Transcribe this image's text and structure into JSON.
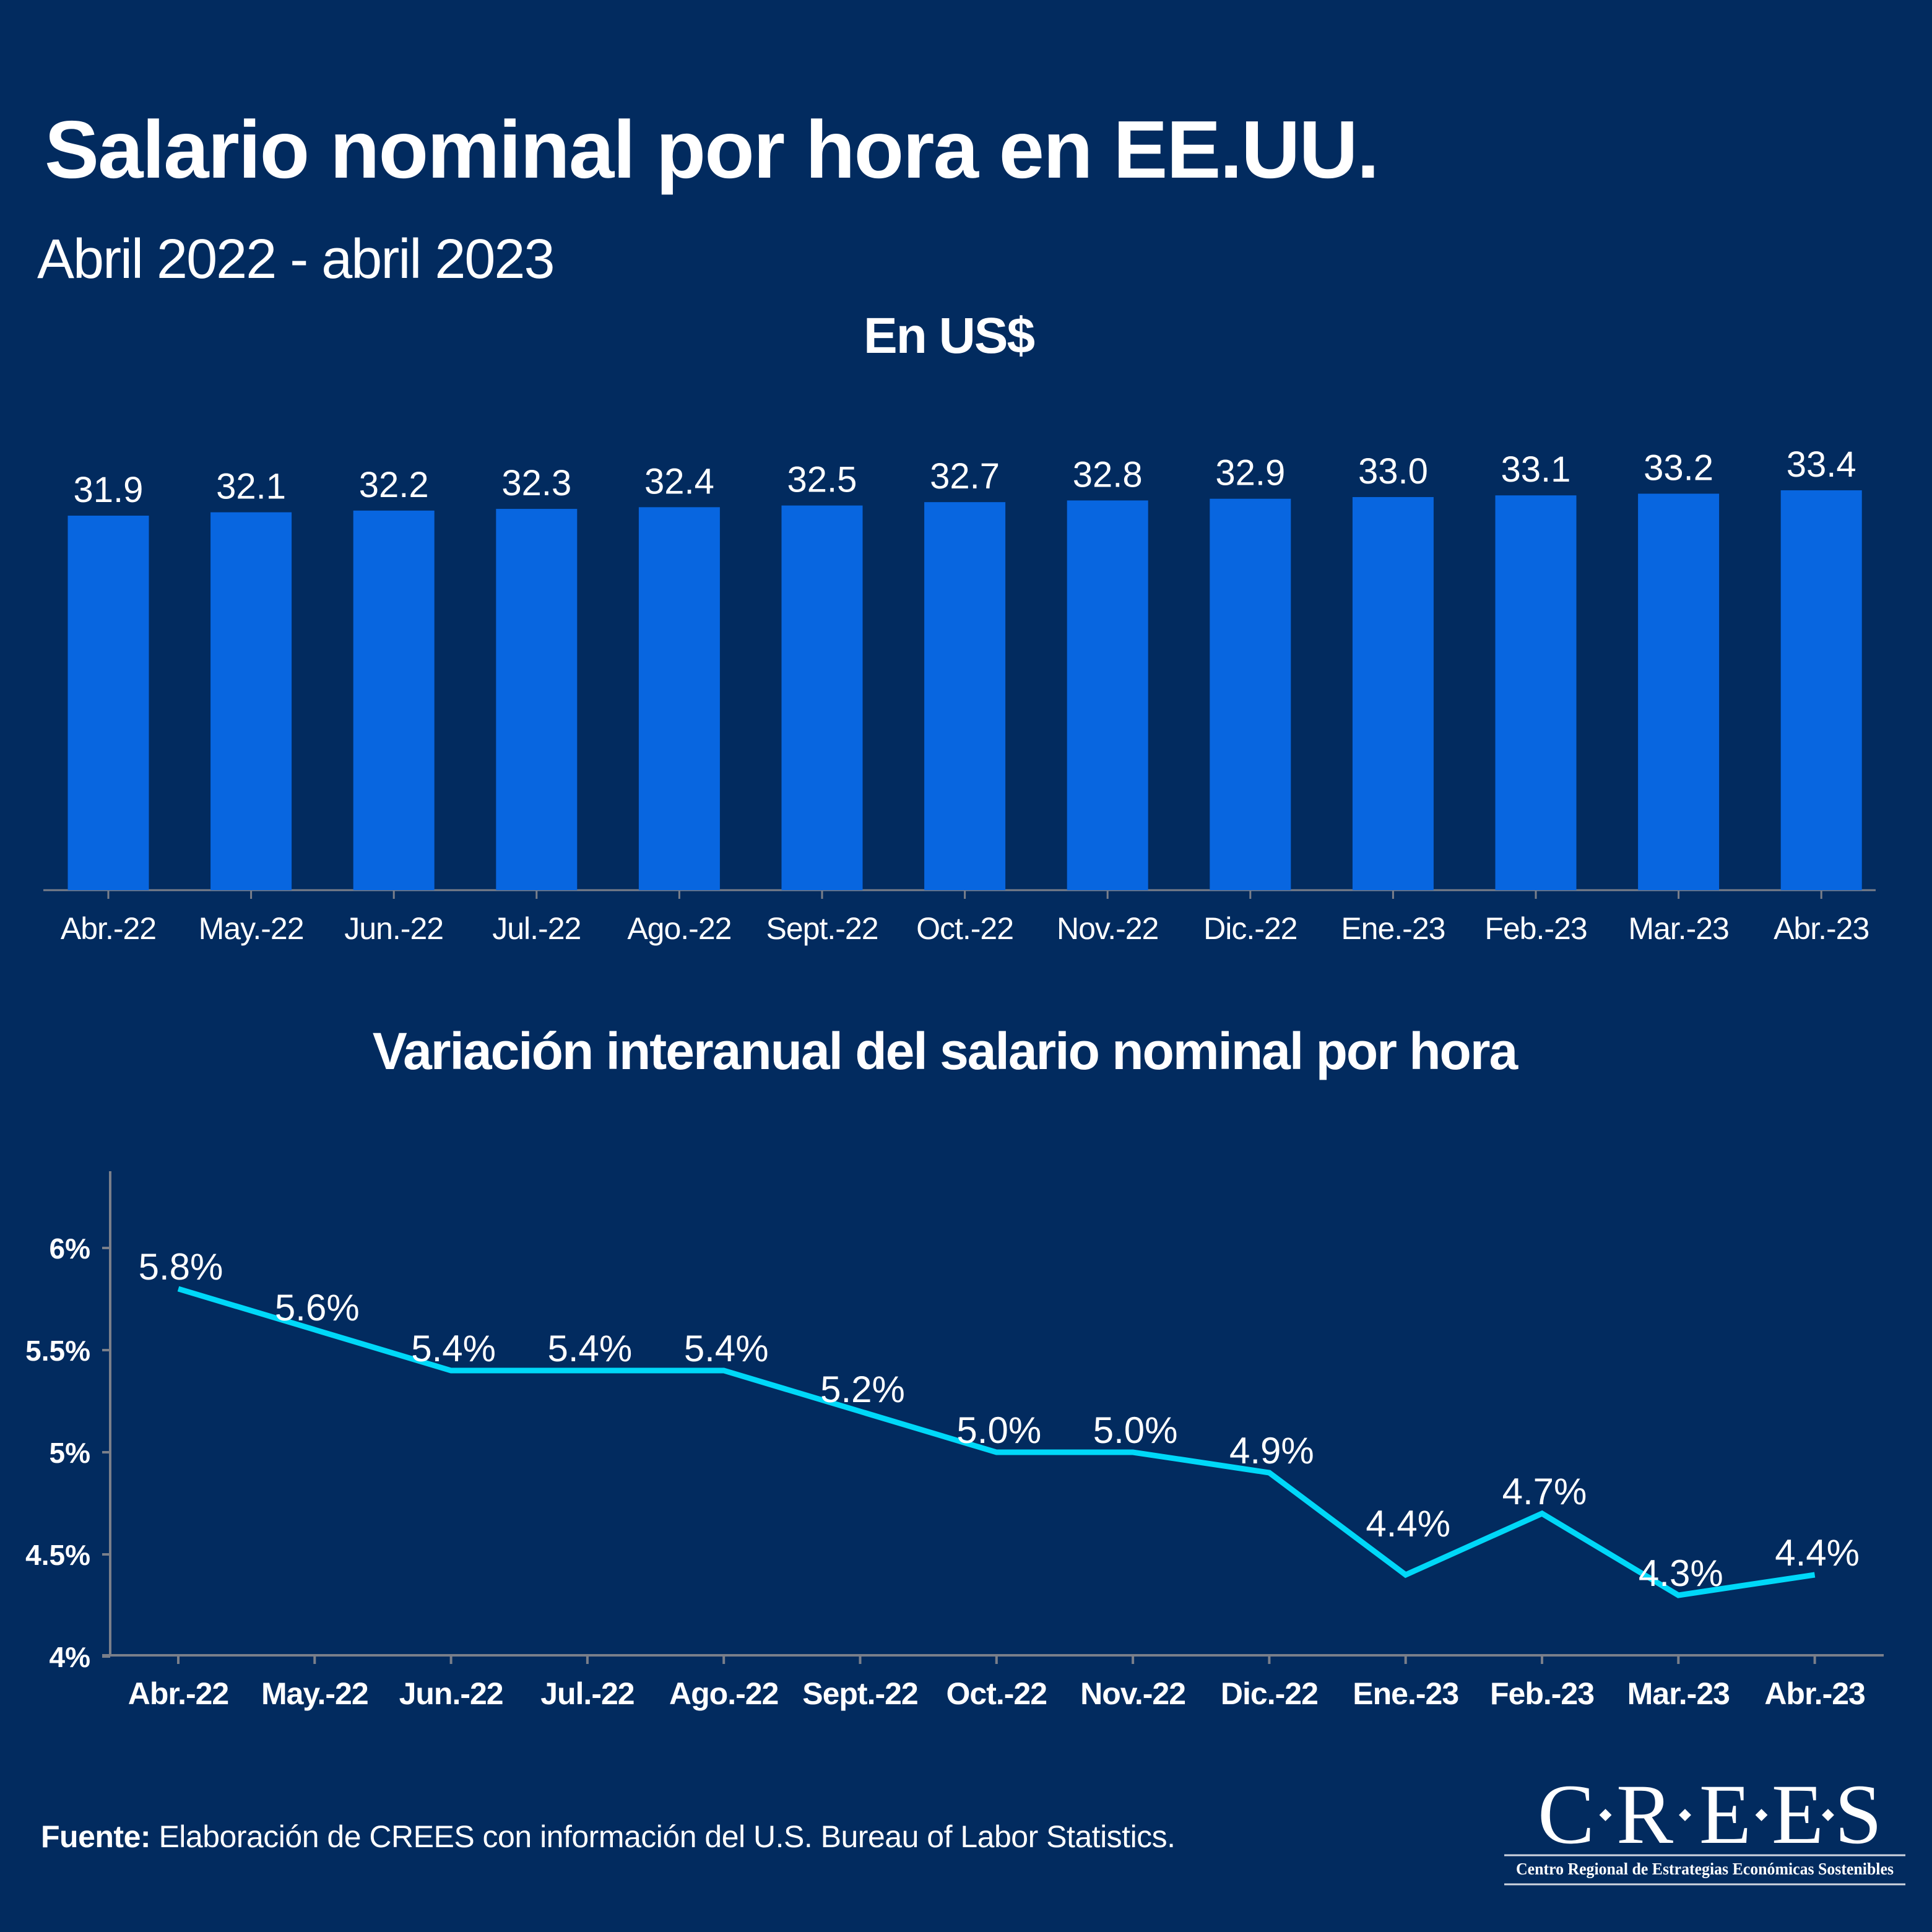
{
  "header": {
    "title": "Salario nominal por hora en EE.UU.",
    "subtitle": "Abril 2022 - abril 2023"
  },
  "footer": {
    "source_label": "Fuente:",
    "source_text": " Elaboración de CREES con información del U.S. Bureau of Labor Statistics."
  },
  "logo": {
    "letters": [
      "C",
      "R",
      "E",
      "E",
      "S"
    ],
    "tagline": "Centro Regional de Estrategias Económicas Sostenibles"
  },
  "colors": {
    "background": "#022b5f",
    "bar": "#0866e0",
    "line": "#00d8f8",
    "axis": "#7a7f8a",
    "text": "#ffffff"
  },
  "chart_data": [
    {
      "type": "bar",
      "title": "En US$",
      "xlabel": "",
      "ylabel": "",
      "categories": [
        "Abr.-22",
        "May.-22",
        "Jun.-22",
        "Jul.-22",
        "Ago.-22",
        "Sept.-22",
        "Oct.-22",
        "Nov.-22",
        "Dic.-22",
        "Ene.-23",
        "Feb.-23",
        "Mar.-23",
        "Abr.-23"
      ],
      "values": [
        31.9,
        32.1,
        32.2,
        32.3,
        32.4,
        32.5,
        32.7,
        32.8,
        32.9,
        33.0,
        33.1,
        33.2,
        33.4
      ],
      "data_labels": [
        "31.9",
        "32.1",
        "32.2",
        "32.3",
        "32.4",
        "32.5",
        "32.7",
        "32.8",
        "32.9",
        "33.0",
        "33.1",
        "33.2",
        "33.4"
      ],
      "grid": false,
      "legend": "none"
    },
    {
      "type": "line",
      "title": "Variación interanual del salario nominal por hora",
      "xlabel": "",
      "ylabel": "",
      "categories": [
        "Abr.-22",
        "May.-22",
        "Jun.-22",
        "Jul.-22",
        "Ago.-22",
        "Sept.-22",
        "Oct.-22",
        "Nov.-22",
        "Dic.-22",
        "Ene.-23",
        "Feb.-23",
        "Mar.-23",
        "Abr.-23"
      ],
      "values": [
        5.8,
        5.6,
        5.4,
        5.4,
        5.4,
        5.2,
        5.0,
        5.0,
        4.9,
        4.4,
        4.7,
        4.3,
        4.4
      ],
      "data_labels": [
        "5.8%",
        "5.6%",
        "5.4%",
        "5.4%",
        "5.4%",
        "5.2%",
        "5.0%",
        "5.0%",
        "4.9%",
        "4.4%",
        "4.7%",
        "4.3%",
        "4.4%"
      ],
      "yticks": [
        4,
        4.5,
        5,
        5.5,
        6
      ],
      "ytick_labels": [
        "4%",
        "4.5%",
        "5%",
        "5.5%",
        "6%"
      ],
      "ylim": [
        4,
        6.4
      ],
      "grid": false,
      "legend": "none"
    }
  ]
}
